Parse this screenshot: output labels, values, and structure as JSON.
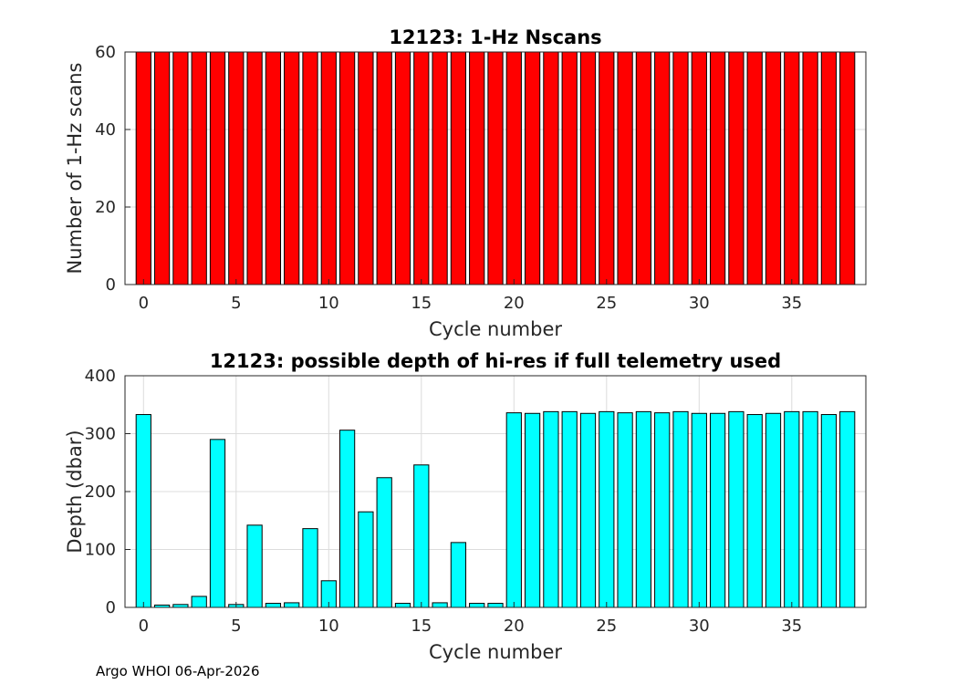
{
  "footer_text": "Argo WHOI 06-Apr-2026",
  "chart_data": [
    {
      "type": "bar",
      "title": "12123: 1-Hz Nscans",
      "xlabel": "Cycle number",
      "ylabel": "Number of 1-Hz scans",
      "xlim": [
        -1,
        39
      ],
      "ylim": [
        0,
        60
      ],
      "xticks": [
        0,
        5,
        10,
        15,
        20,
        25,
        30,
        35
      ],
      "yticks": [
        0,
        20,
        40,
        60
      ],
      "grid": true,
      "bar_color": "#ff0000",
      "x": [
        0,
        1,
        2,
        3,
        4,
        5,
        6,
        7,
        8,
        9,
        10,
        11,
        12,
        13,
        14,
        15,
        16,
        17,
        18,
        19,
        20,
        21,
        22,
        23,
        24,
        25,
        26,
        27,
        28,
        29,
        30,
        31,
        32,
        33,
        34,
        35,
        36,
        37,
        38
      ],
      "values": [
        60,
        60,
        60,
        60,
        60,
        60,
        60,
        60,
        60,
        60,
        60,
        60,
        60,
        60,
        60,
        60,
        60,
        60,
        60,
        60,
        60,
        60,
        60,
        60,
        60,
        60,
        60,
        60,
        60,
        60,
        60,
        60,
        60,
        60,
        60,
        60,
        60,
        60,
        60
      ]
    },
    {
      "type": "bar",
      "title": "12123: possible depth of hi-res if full telemetry used",
      "xlabel": "Cycle number",
      "ylabel": "Depth (dbar)",
      "xlim": [
        -1,
        39
      ],
      "ylim": [
        0,
        400
      ],
      "xticks": [
        0,
        5,
        10,
        15,
        20,
        25,
        30,
        35
      ],
      "yticks": [
        0,
        100,
        200,
        300,
        400
      ],
      "grid": true,
      "bar_color": "#00ffff",
      "x": [
        0,
        1,
        2,
        3,
        4,
        5,
        6,
        7,
        8,
        9,
        10,
        11,
        12,
        13,
        14,
        15,
        16,
        17,
        18,
        19,
        20,
        21,
        22,
        23,
        24,
        25,
        26,
        27,
        28,
        29,
        30,
        31,
        32,
        33,
        34,
        35,
        36,
        37,
        38
      ],
      "values": [
        333,
        4,
        5,
        19,
        290,
        5,
        142,
        7,
        8,
        136,
        46,
        306,
        165,
        224,
        7,
        246,
        8,
        112,
        7,
        7,
        336,
        335,
        338,
        338,
        335,
        338,
        336,
        338,
        336,
        338,
        335,
        335,
        338,
        333,
        335,
        338,
        338,
        333,
        338
      ]
    }
  ]
}
